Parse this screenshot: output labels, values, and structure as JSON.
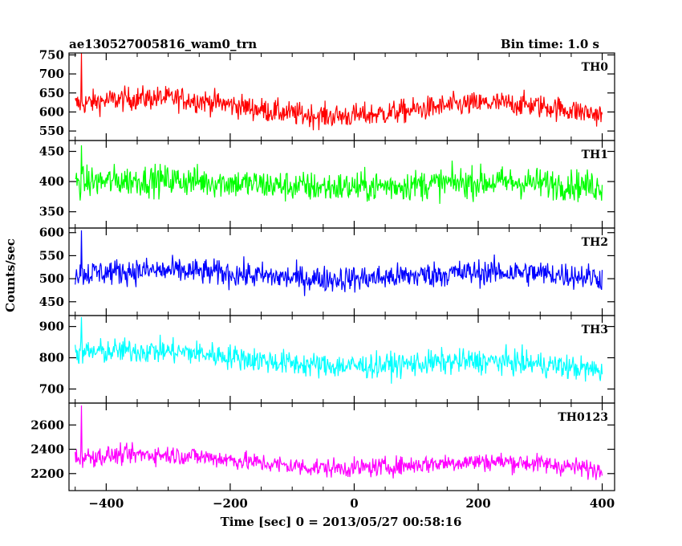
{
  "header": {
    "title": "ae130527005816_wam0_trn",
    "bin_time": "Bin time: 1.0 s"
  },
  "chart_data": {
    "type": "line",
    "title": "ae130527005816_wam0_trn",
    "subtitle": "Bin time: 1.0 s",
    "xlabel": "Time [sec] 0 = 2013/05/27 00:58:16",
    "ylabel": "Counts/sec",
    "xlim": [
      -460,
      420
    ],
    "x_ticks": [
      -400,
      -200,
      0,
      200,
      400
    ],
    "x_tick_labels": [
      "−400",
      "−200",
      "0",
      "200",
      "400"
    ],
    "x_range": [
      -450,
      400
    ],
    "grid": false,
    "legend": "none",
    "panels": [
      {
        "name": "TH0",
        "color": "#ff0000",
        "ylim": [
          525,
          755
        ],
        "y_ticks": [
          550,
          600,
          650,
          700,
          750
        ],
        "baseline_start": 620,
        "baseline_end": 598,
        "noise": 22,
        "hump": 20,
        "spike": {
          "x": -440,
          "value": 755
        }
      },
      {
        "name": "TH1",
        "color": "#00ff00",
        "ylim": [
          323,
          468
        ],
        "y_ticks": [
          350,
          400,
          450
        ],
        "baseline_start": 398,
        "baseline_end": 393,
        "noise": 18,
        "hump": 5,
        "spike": {
          "x": -440,
          "value": 460
        }
      },
      {
        "name": "TH2",
        "color": "#0000ff",
        "ylim": [
          420,
          610
        ],
        "y_ticks": [
          450,
          500,
          550,
          600
        ],
        "baseline_start": 510,
        "baseline_end": 505,
        "noise": 20,
        "hump": 8,
        "spike": {
          "x": -440,
          "value": 605
        }
      },
      {
        "name": "TH3",
        "color": "#00ffff",
        "ylim": [
          655,
          935
        ],
        "y_ticks": [
          700,
          800,
          900
        ],
        "baseline_start": 815,
        "baseline_end": 762,
        "noise": 28,
        "hump": 15,
        "spike": {
          "x": -440,
          "value": 930
        }
      },
      {
        "name": "TH0123",
        "color": "#ff00ff",
        "ylim": [
          2060,
          2780
        ],
        "y_ticks": [
          2200,
          2400,
          2600
        ],
        "baseline_start": 2330,
        "baseline_end": 2240,
        "noise": 55,
        "hump": 40,
        "spike": {
          "x": -440,
          "value": 2760
        }
      }
    ]
  }
}
